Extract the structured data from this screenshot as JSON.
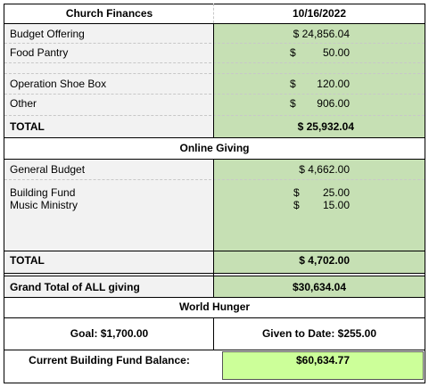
{
  "header": {
    "title": "Church Finances",
    "date": "10/16/2022"
  },
  "offerings": [
    {
      "label": "Budget Offering",
      "value": "$ 24,856.04"
    },
    {
      "label": "Food Pantry",
      "symbol": "$",
      "amount": "50.00"
    },
    {
      "label": "Operation Shoe Box",
      "symbol": "$",
      "amount": "120.00"
    },
    {
      "label": "Other",
      "symbol": "$",
      "amount": "906.00"
    }
  ],
  "offerings_total": {
    "label": "TOTAL",
    "value": "$ 25,932.04"
  },
  "online": {
    "title": "Online Giving",
    "items": [
      {
        "label": "General Budget",
        "value": "$ 4,662.00"
      },
      {
        "label": "Building Fund",
        "symbol": "$",
        "amount": "25.00"
      },
      {
        "label": "Music Ministry",
        "symbol": "$",
        "amount": "15.00"
      }
    ],
    "total": {
      "label": "TOTAL",
      "value": "$ 4,702.00"
    }
  },
  "grand_total": {
    "label": "Grand Total of ALL giving",
    "value": "$30,634.04"
  },
  "world_hunger": {
    "title": "World Hunger",
    "goal": "Goal: $1,700.00",
    "given": "Given to Date: $255.00"
  },
  "building_fund_balance": {
    "label": "Current Building Fund Balance:",
    "value": "$60,634.77"
  }
}
